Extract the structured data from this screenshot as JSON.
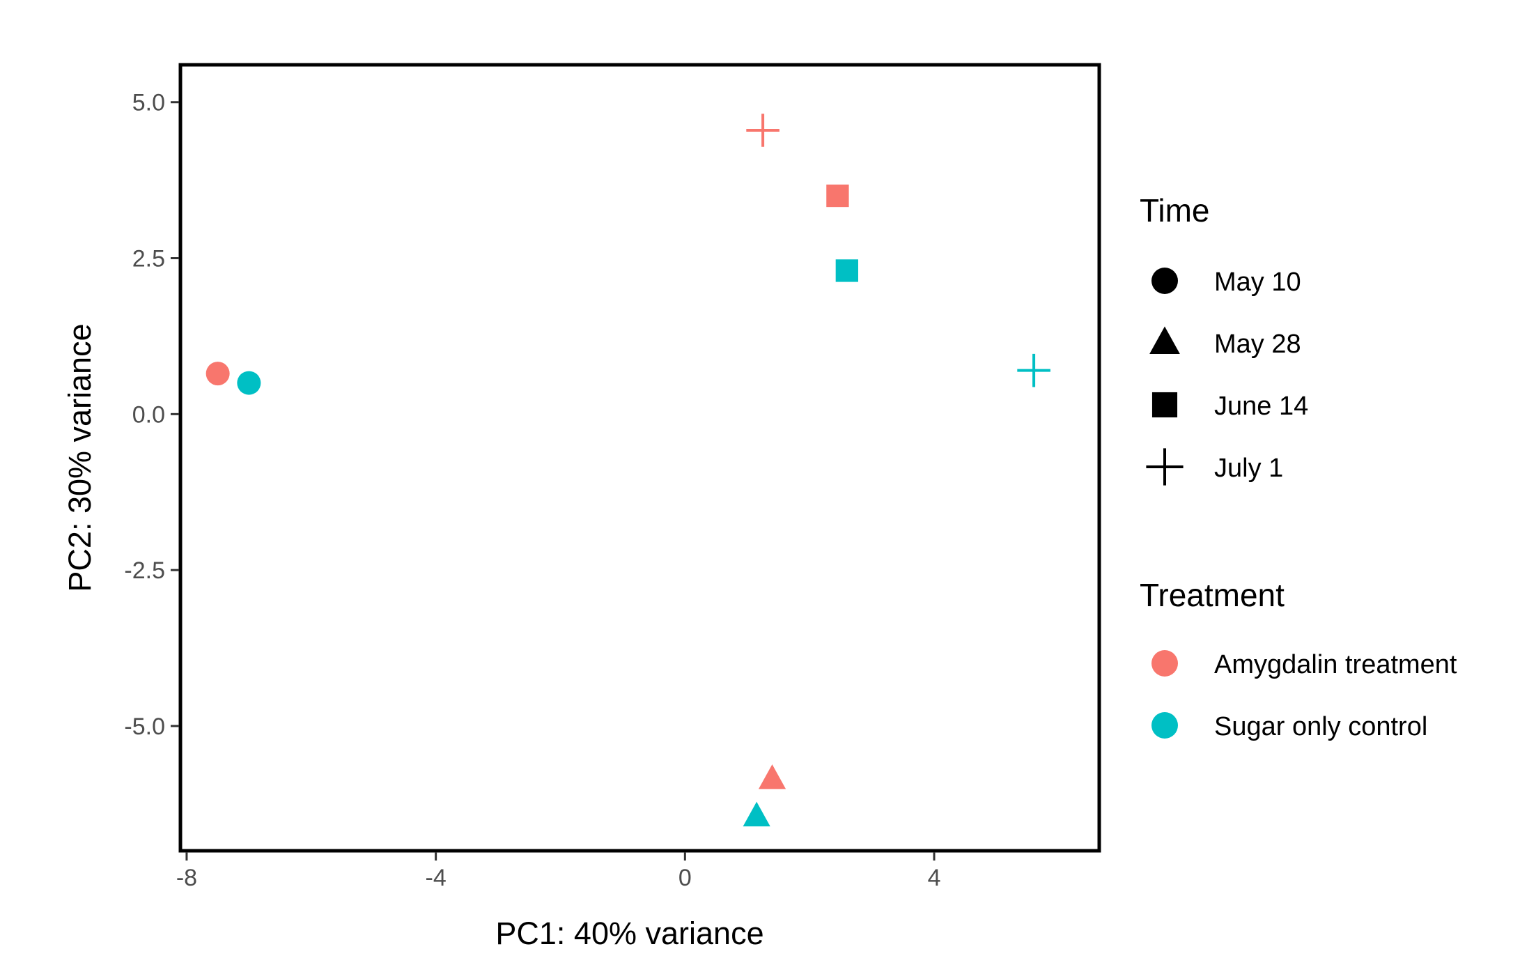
{
  "chart_data": {
    "type": "scatter",
    "xlabel": "PC1: 40% variance",
    "ylabel": "PC2: 30% variance",
    "xlim": [
      -8.1,
      6.65
    ],
    "ylim": [
      -7.0,
      5.6
    ],
    "x_ticks": [
      -8,
      -4,
      0,
      4
    ],
    "x_tick_labels": [
      "-8",
      "-4",
      "0",
      "4"
    ],
    "y_ticks": [
      5.0,
      2.5,
      0.0,
      -2.5,
      -5.0
    ],
    "y_tick_labels": [
      "5.0",
      "2.5",
      "0.0",
      "-2.5",
      "-5.0"
    ],
    "grid": false,
    "legend_position": "right",
    "points": [
      {
        "x": -7.5,
        "y": 0.65,
        "time": "May 10",
        "treatment": "Amygdalin treatment"
      },
      {
        "x": -7.0,
        "y": 0.5,
        "time": "May 10",
        "treatment": "Sugar only control"
      },
      {
        "x": 1.4,
        "y": -5.85,
        "time": "May 28",
        "treatment": "Amygdalin treatment"
      },
      {
        "x": 1.15,
        "y": -6.45,
        "time": "May 28",
        "treatment": "Sugar only control"
      },
      {
        "x": 2.45,
        "y": 3.5,
        "time": "June 14",
        "treatment": "Amygdalin treatment"
      },
      {
        "x": 2.6,
        "y": 2.3,
        "time": "June 14",
        "treatment": "Sugar only control"
      },
      {
        "x": 1.25,
        "y": 4.55,
        "time": "July 1",
        "treatment": "Amygdalin treatment"
      },
      {
        "x": 5.6,
        "y": 0.7,
        "time": "July 1",
        "treatment": "Sugar only control"
      }
    ],
    "legend": {
      "time_title": "Time",
      "time_items": [
        {
          "label": "May 10",
          "shape": "circle"
        },
        {
          "label": "May 28",
          "shape": "triangle"
        },
        {
          "label": "June 14",
          "shape": "square"
        },
        {
          "label": "July 1",
          "shape": "plus"
        }
      ],
      "treatment_title": "Treatment",
      "treatment_items": [
        {
          "label": "Amygdalin treatment",
          "color": "#F8766D"
        },
        {
          "label": "Sugar only control",
          "color": "#00BFC4"
        }
      ]
    }
  }
}
